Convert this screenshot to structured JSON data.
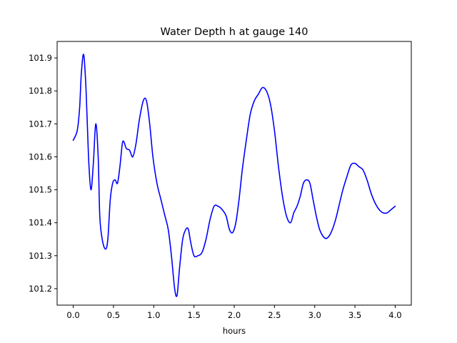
{
  "chart_data": {
    "type": "line",
    "title": "Water Depth h at gauge 140",
    "xlabel": "hours",
    "ylabel": "",
    "xlim": [
      -0.2,
      4.2
    ],
    "ylim": [
      101.15,
      101.95
    ],
    "xticks": [
      0.0,
      0.5,
      1.0,
      1.5,
      2.0,
      2.5,
      3.0,
      3.5,
      4.0
    ],
    "xtick_labels": [
      "0.0",
      "0.5",
      "1.0",
      "1.5",
      "2.0",
      "2.5",
      "3.0",
      "3.5",
      "4.0"
    ],
    "yticks": [
      101.2,
      101.3,
      101.4,
      101.5,
      101.6,
      101.7,
      101.8,
      101.9
    ],
    "ytick_labels": [
      "101.2",
      "101.3",
      "101.4",
      "101.5",
      "101.6",
      "101.7",
      "101.8",
      "101.9"
    ],
    "grid": false,
    "series": [
      {
        "name": "",
        "color": "#0000ff",
        "x": [
          0.0,
          0.05,
          0.08,
          0.1,
          0.13,
          0.16,
          0.19,
          0.22,
          0.25,
          0.28,
          0.31,
          0.33,
          0.36,
          0.4,
          0.43,
          0.46,
          0.49,
          0.52,
          0.55,
          0.58,
          0.61,
          0.63,
          0.66,
          0.7,
          0.74,
          0.78,
          0.82,
          0.87,
          0.91,
          0.95,
          0.99,
          1.04,
          1.09,
          1.14,
          1.18,
          1.22,
          1.26,
          1.29,
          1.32,
          1.36,
          1.4,
          1.43,
          1.46,
          1.5,
          1.55,
          1.6,
          1.65,
          1.7,
          1.75,
          1.8,
          1.85,
          1.9,
          1.94,
          1.98,
          2.02,
          2.06,
          2.1,
          2.15,
          2.2,
          2.25,
          2.3,
          2.35,
          2.4,
          2.45,
          2.5,
          2.55,
          2.6,
          2.65,
          2.7,
          2.74,
          2.78,
          2.82,
          2.86,
          2.9,
          2.94,
          2.98,
          3.02,
          3.06,
          3.1,
          3.14,
          3.18,
          3.22,
          3.26,
          3.3,
          3.35,
          3.4,
          3.45,
          3.5,
          3.55,
          3.6,
          3.65,
          3.7,
          3.75,
          3.8,
          3.85,
          3.9,
          3.95,
          4.0
        ],
        "y": [
          101.65,
          101.68,
          101.75,
          101.85,
          101.91,
          101.8,
          101.6,
          101.5,
          101.58,
          101.7,
          101.6,
          101.42,
          101.35,
          101.32,
          101.35,
          101.47,
          101.52,
          101.53,
          101.52,
          101.57,
          101.64,
          101.645,
          101.625,
          101.62,
          101.6,
          101.64,
          101.71,
          101.77,
          101.77,
          101.7,
          101.6,
          101.52,
          101.47,
          101.42,
          101.38,
          101.3,
          101.2,
          101.18,
          101.26,
          101.35,
          101.38,
          101.38,
          101.34,
          101.3,
          101.3,
          101.31,
          101.35,
          101.41,
          101.45,
          101.45,
          101.44,
          101.42,
          101.38,
          101.37,
          101.4,
          101.47,
          101.56,
          101.65,
          101.73,
          101.77,
          101.79,
          101.81,
          101.8,
          101.76,
          101.68,
          101.57,
          101.48,
          101.42,
          101.4,
          101.43,
          101.45,
          101.48,
          101.52,
          101.53,
          101.52,
          101.47,
          101.42,
          101.38,
          101.36,
          101.352,
          101.36,
          101.38,
          101.41,
          101.45,
          101.5,
          101.54,
          101.575,
          101.58,
          101.57,
          101.56,
          101.53,
          101.49,
          101.46,
          101.44,
          101.43,
          101.43,
          101.44,
          101.45
        ]
      }
    ]
  }
}
